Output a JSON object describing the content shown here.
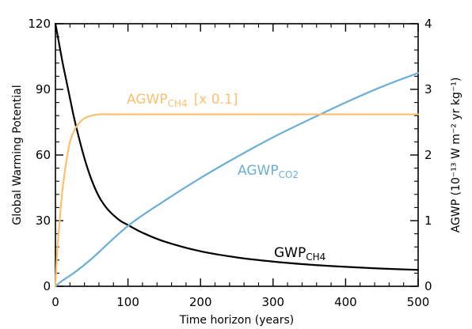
{
  "chart_data": {
    "type": "line",
    "xlabel": "Time horizon (years)",
    "ylabel_left": "Global Warming Potential",
    "ylabel_right": "AGWP (10⁻¹³ W m⁻² yr kg⁻¹)",
    "xlim": [
      0,
      500
    ],
    "ylim_left": [
      0,
      120
    ],
    "ylim_right": [
      0,
      4
    ],
    "x_ticks": [
      "0",
      "100",
      "200",
      "300",
      "400",
      "500"
    ],
    "y_left_ticks": [
      "0",
      "30",
      "60",
      "90",
      "120"
    ],
    "y_right_ticks": [
      "0",
      "1",
      "2",
      "3",
      "4"
    ],
    "grid": false,
    "series": [
      {
        "name": "GWP",
        "subscript": "CH4",
        "color": "#000000",
        "axis": "left",
        "x": [
          0,
          5,
          10,
          15,
          20,
          25,
          30,
          40,
          50,
          60,
          70,
          80,
          90,
          100,
          120,
          150,
          200,
          250,
          300,
          350,
          400,
          450,
          500
        ],
        "y": [
          120,
          111,
          102,
          94,
          86,
          78,
          71,
          58.5,
          48.5,
          41,
          36,
          32.5,
          29.8,
          28,
          24.5,
          20.5,
          16,
          13.2,
          11.3,
          9.9,
          8.9,
          8.1,
          7.5
        ]
      },
      {
        "name": "AGWP",
        "subscript": "CO2",
        "color": "#6baed6",
        "axis": "right",
        "x": [
          0,
          10,
          25,
          50,
          100,
          150,
          200,
          250,
          300,
          350,
          400,
          450,
          500
        ],
        "y": [
          0,
          0.09,
          0.2,
          0.42,
          0.92,
          1.3,
          1.65,
          1.97,
          2.27,
          2.54,
          2.8,
          3.04,
          3.25
        ]
      },
      {
        "name": "AGWP",
        "subscript": "CH4",
        "label_suffix": "[x 0.1]",
        "color": "#fdbf6f",
        "axis": "right",
        "x": [
          0,
          2,
          5,
          10,
          15,
          20,
          25,
          30,
          40,
          50,
          60,
          80,
          100,
          200,
          300,
          400,
          500
        ],
        "y": [
          0,
          0.45,
          0.9,
          1.5,
          1.9,
          2.2,
          2.35,
          2.45,
          2.56,
          2.6,
          2.62,
          2.62,
          2.62,
          2.62,
          2.62,
          2.62,
          2.62
        ]
      }
    ]
  }
}
